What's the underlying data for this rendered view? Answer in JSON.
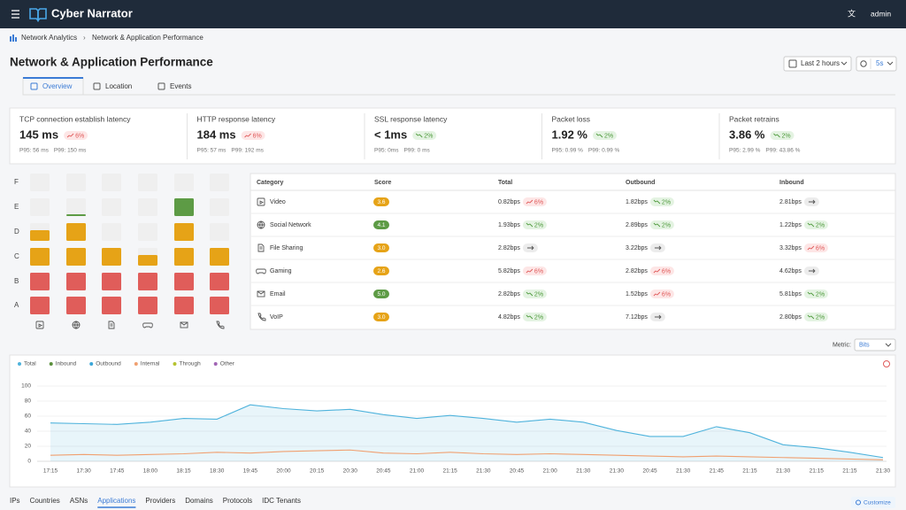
{
  "header": {
    "brand": "Cyber Narrator",
    "user": "admin"
  },
  "breadcrumb": [
    "Network Analytics",
    "Network & Application Performance"
  ],
  "page_title": "Network & Application Performance",
  "controls": {
    "range": "Last 2 hours",
    "refresh": "5s"
  },
  "tabs": [
    "Overview",
    "Location",
    "Events"
  ],
  "active_tab": 0,
  "kpis": [
    {
      "label": "TCP connection establish latency",
      "value": "145 ms",
      "change": "6%",
      "trend": "up",
      "p95": "P95: 56 ms",
      "p99": "P99: 150 ms"
    },
    {
      "label": "HTTP response latency",
      "value": "184 ms",
      "change": "6%",
      "trend": "up",
      "p95": "P95: 57 ms",
      "p99": "P99: 192 ms"
    },
    {
      "label": "SSL response latency",
      "value": "< 1ms",
      "change": "2%",
      "trend": "down",
      "p95": "P95: 0ms",
      "p99": "P99: 0 ms"
    },
    {
      "label": "Packet loss",
      "value": "1.92 %",
      "change": "2%",
      "trend": "down",
      "p95": "P95: 0.99 %",
      "p99": "P99: 0.99 %"
    },
    {
      "label": "Packet retrains",
      "value": "3.86 %",
      "change": "2%",
      "trend": "down",
      "p95": "P95: 2.99 %",
      "p99": "P99: 43.86 %"
    }
  ],
  "grades": [
    "F",
    "E",
    "D",
    "C",
    "B",
    "A"
  ],
  "table": {
    "columns": [
      "Category",
      "Score",
      "Total",
      "Outbound",
      "Inbound"
    ],
    "rows": [
      {
        "category": "Video",
        "score": 3.6,
        "score_label": "3.6",
        "cells": [
          {
            "value": "0.82bps",
            "change": "6%",
            "trend": "up"
          },
          {
            "value": "1.82bps",
            "change": "2%",
            "trend": "down"
          },
          {
            "value": "2.81bps",
            "trend": "flat"
          }
        ]
      },
      {
        "category": "Social Network",
        "score": 4.1,
        "score_label": "4.1",
        "cells": [
          {
            "value": "1.93bps",
            "change": "2%",
            "trend": "down"
          },
          {
            "value": "2.89bps",
            "change": "2%",
            "trend": "down"
          },
          {
            "value": "1.22bps",
            "change": "2%",
            "trend": "down"
          }
        ]
      },
      {
        "category": "File Sharing",
        "score": 3,
        "score_label": "3.0",
        "cells": [
          {
            "value": "2.82bps",
            "trend": "flat"
          },
          {
            "value": "3.22bps",
            "trend": "flat"
          },
          {
            "value": "3.32bps",
            "change": "6%",
            "trend": "up"
          }
        ]
      },
      {
        "category": "Gaming",
        "score": 2.6,
        "score_label": "2.6",
        "cells": [
          {
            "value": "5.82bps",
            "change": "6%",
            "trend": "up"
          },
          {
            "value": "2.82bps",
            "change": "6%",
            "trend": "up"
          },
          {
            "value": "4.62bps",
            "trend": "flat"
          }
        ]
      },
      {
        "category": "Email",
        "score": 5,
        "score_label": "5.0",
        "cells": [
          {
            "value": "2.82bps",
            "change": "2%",
            "trend": "down"
          },
          {
            "value": "1.52bps",
            "change": "6%",
            "trend": "up"
          },
          {
            "value": "5.81bps",
            "change": "2%",
            "trend": "down"
          }
        ]
      },
      {
        "category": "VoIP",
        "score": 3,
        "score_label": "3.0",
        "cells": [
          {
            "value": "4.82bps",
            "change": "2%",
            "trend": "down"
          },
          {
            "value": "7.12bps",
            "trend": "flat"
          },
          {
            "value": "2.80bps",
            "change": "2%",
            "trend": "down"
          }
        ]
      }
    ]
  },
  "metric": {
    "label": "Metric:",
    "value": "Bits"
  },
  "chart_data": {
    "type": "line",
    "categories": [
      "17:15",
      "17:30",
      "17:45",
      "18:00",
      "18:15",
      "18:30",
      "19:45",
      "20:00",
      "20:15",
      "20:30",
      "20:45",
      "21:00",
      "21:15",
      "21:30",
      "20:45",
      "21:00",
      "21:30",
      "21:30",
      "20:45",
      "21:30",
      "21:45",
      "21:15",
      "21:30",
      "21:15",
      "21:15",
      "21:30"
    ],
    "ylim": [
      0,
      100
    ],
    "yticks": [
      0,
      20,
      40,
      60,
      80,
      100
    ],
    "series": [
      {
        "name": "Total",
        "color": "#4fb3dc",
        "area": true,
        "values": [
          51,
          50,
          49,
          52,
          57,
          56,
          75,
          70,
          67,
          69,
          62,
          57,
          61,
          57,
          52,
          56,
          52,
          41,
          33,
          33,
          46,
          38,
          22,
          18,
          12,
          5
        ]
      },
      {
        "name": "Inbound",
        "color": "#5a8f3c",
        "values": [
          null,
          null,
          null,
          null,
          null,
          null,
          null,
          null,
          null,
          null,
          null,
          null,
          null,
          null,
          null,
          null,
          null,
          null,
          null,
          null,
          null,
          null,
          null,
          null,
          null,
          null
        ]
      },
      {
        "name": "Outbound",
        "color": "#3aa6d8",
        "values": [
          null,
          null,
          null,
          null,
          null,
          null,
          null,
          null,
          null,
          null,
          null,
          null,
          null,
          null,
          null,
          null,
          null,
          null,
          null,
          null,
          null,
          null,
          null,
          null,
          null,
          null
        ]
      },
      {
        "name": "Internal",
        "color": "#f0a070",
        "values": [
          8,
          9,
          8,
          9,
          10,
          12,
          11,
          13,
          14,
          15,
          11,
          10,
          12,
          10,
          9,
          10,
          9,
          8,
          7,
          6,
          7,
          6,
          5,
          4,
          3,
          2
        ]
      },
      {
        "name": "Through",
        "color": "#b5c22e",
        "values": [
          null,
          null,
          null,
          null,
          null,
          null,
          null,
          null,
          null,
          null,
          null,
          null,
          null,
          null,
          null,
          null,
          null,
          null,
          null,
          null,
          null,
          null,
          null,
          null,
          null,
          null
        ]
      },
      {
        "name": "Other",
        "color": "#a064b4",
        "values": [
          null,
          null,
          null,
          null,
          null,
          null,
          null,
          null,
          null,
          null,
          null,
          null,
          null,
          null,
          null,
          null,
          null,
          null,
          null,
          null,
          null,
          null,
          null,
          null,
          null,
          null
        ]
      }
    ]
  },
  "bottom_tabs": [
    "IPs",
    "Countries",
    "ASNs",
    "Applications",
    "Providers",
    "Domains",
    "Protocols",
    "IDC Tenants"
  ],
  "active_bottom_tab": 3,
  "customize": "Customize"
}
